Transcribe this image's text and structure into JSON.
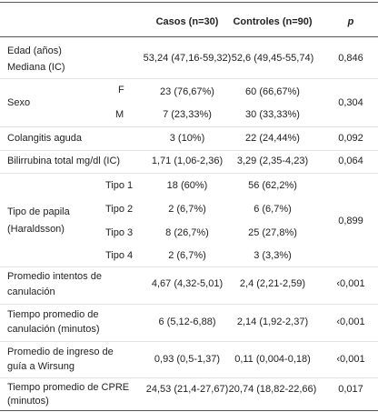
{
  "header": {
    "casos": "Casos (n=30)",
    "controles": "Controles (n=90)",
    "p": "p"
  },
  "rows": [
    {
      "label": [
        "Edad (años)",
        "Mediana (IC)"
      ],
      "casos": "53,24 (47,16-59,32)",
      "controles": "52,6 (49,45-55,74)",
      "p": "0,846"
    },
    {
      "label": [
        "Sexo"
      ],
      "p": "0,304",
      "sub": [
        {
          "label": "F",
          "casos": "23 (76,67%)",
          "controles": "60 (66,67%)"
        },
        {
          "label": "M",
          "casos": "7 (23,33%)",
          "controles": "30 (33,33%)"
        }
      ]
    },
    {
      "label": [
        "Colangitis aguda"
      ],
      "casos": "3 (10%)",
      "controles": "22 (24,44%)",
      "p": "0,092"
    },
    {
      "label": [
        "Bilirrubina total mg/dl (IC)"
      ],
      "casos": "1,71 (1,06-2,36)",
      "controles": "3,29 (2,35-4,23)",
      "p": "0,064"
    },
    {
      "label": [
        "Tipo de papila",
        "(Haraldsson)"
      ],
      "p": "0,899",
      "sub": [
        {
          "label": "Tipo 1",
          "casos": "18 (60%)",
          "controles": "56 (62,2%)"
        },
        {
          "label": "Tipo 2",
          "casos": "2 (6,7%)",
          "controles": "6 (6,7%)"
        },
        {
          "label": "Tipo 3",
          "casos": "8 (26,7%)",
          "controles": "25 (27,8%)"
        },
        {
          "label": "Tipo 4",
          "casos": "2 (6,7%)",
          "controles": "3 (3,3%)"
        }
      ]
    },
    {
      "label": [
        "Promedio intentos de",
        "canulación"
      ],
      "casos": "4,67 (4,32-5,01)",
      "controles": "2,4 (2,21-2,59)",
      "p": "‹0,001"
    },
    {
      "label": [
        "Tiempo promedio de",
        "canulación (minutos)"
      ],
      "casos": "6 (5,12-6,88)",
      "controles": "2,14 (1,92-2,37)",
      "p": "‹0,001"
    },
    {
      "label": [
        "Promedio de ingreso de",
        "guía a Wirsung"
      ],
      "casos": "0,93 (0,5-1,37)",
      "controles": "0,11 (0,004-0,18)",
      "p": "‹0,001"
    },
    {
      "label": [
        "Tiempo promedio de CPRE",
        "(minutos)"
      ],
      "casos": "24,53 (21,4-27,67)",
      "controles": "20,74 (18,82-22,66)",
      "p": "0,017"
    }
  ]
}
